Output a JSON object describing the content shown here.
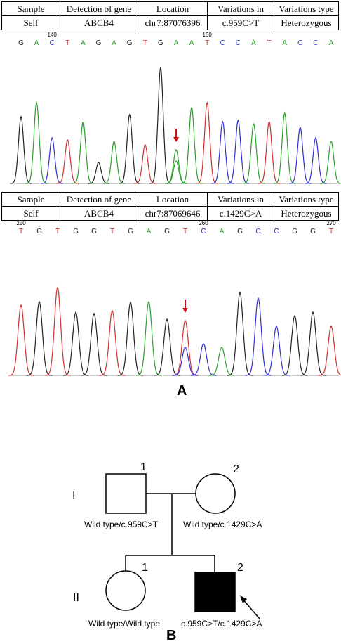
{
  "panelA": {
    "label": "A",
    "table1": {
      "headers": [
        "Sample",
        "Detection of gene",
        "Location",
        "Variations in",
        "Variations type"
      ],
      "row": [
        "Self",
        "ABCB4",
        "chr7:87076396",
        "c.959C>T",
        "Heterozygous"
      ]
    },
    "seq1": {
      "bases": [
        "G",
        "A",
        "C",
        "T",
        "A",
        "G",
        "A",
        "G",
        "T",
        "G",
        "A",
        "A",
        "T",
        "C",
        "C",
        "A",
        "T",
        "A",
        "C",
        "C",
        "A"
      ],
      "pos_labels": [
        "140",
        "150"
      ]
    },
    "table2": {
      "headers": [
        "Sample",
        "Detection of gene",
        "Location",
        "Variations in",
        "Variations type"
      ],
      "row": [
        "Self",
        "ABCB4",
        "chr7:87069646",
        "c.1429C>A",
        "Heterozygous"
      ]
    },
    "seq2": {
      "bases": [
        "T",
        "G",
        "T",
        "G",
        "G",
        "T",
        "G",
        "A",
        "G",
        "T",
        "C",
        "A",
        "G",
        "C",
        "C",
        "G",
        "G",
        "T"
      ],
      "pos_labels": [
        "250",
        "260",
        "270"
      ]
    },
    "base_colors": {
      "A": "#2e9e2e",
      "C": "#3030d0",
      "G": "#222222",
      "T": "#d03030"
    },
    "arrow_color": "#cc1111"
  },
  "panelB": {
    "label": "B",
    "generations": [
      "I",
      "II"
    ],
    "individuals": [
      {
        "id": "1",
        "sex": "male",
        "affected": false,
        "genotype": "Wild type/c.959C>T"
      },
      {
        "id": "2",
        "sex": "female",
        "affected": false,
        "genotype": "Wild type/c.1429C>A"
      },
      {
        "id": "1",
        "sex": "female",
        "affected": false,
        "genotype": "Wild type/Wild type"
      },
      {
        "id": "2",
        "sex": "male",
        "affected": true,
        "proband": true,
        "genotype": "c.959C>T/c.1429C>A"
      }
    ]
  }
}
